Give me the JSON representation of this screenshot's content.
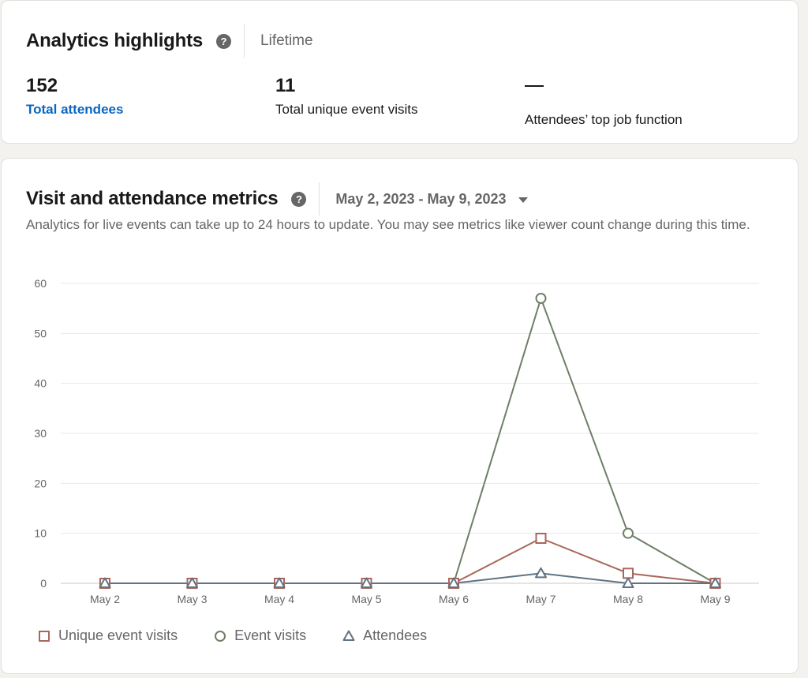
{
  "highlights": {
    "title": "Analytics highlights",
    "help_icon": "question-circle-icon",
    "period": "Lifetime",
    "stats": [
      {
        "value": "152",
        "label": "Total attendees"
      },
      {
        "value": "11",
        "label": "Total unique event visits"
      },
      {
        "value": "—",
        "label": "Attendees’ top job function"
      }
    ]
  },
  "metrics": {
    "title": "Visit and attendance metrics",
    "help_icon": "question-circle-icon",
    "date_range": "May 2, 2023 - May 9, 2023",
    "dropdown_icon": "caret-down-icon",
    "note": "Analytics for live events can take up to 24 hours to update. You may see metrics like viewer count change during this time."
  },
  "colors": {
    "unique_event_visits": "#a8675a",
    "event_visits": "#6d7f66",
    "attendees": "#5f7384",
    "link": "#0a66c2"
  },
  "chart_data": {
    "type": "line",
    "categories": [
      "May 2",
      "May 3",
      "May 4",
      "May 5",
      "May 6",
      "May 7",
      "May 8",
      "May 9"
    ],
    "ylim": [
      0,
      60
    ],
    "yticks": [
      0,
      10,
      20,
      30,
      40,
      50,
      60
    ],
    "grid": true,
    "legend_position": "bottom-left",
    "series": [
      {
        "name": "Unique event visits",
        "marker": "square",
        "values": [
          0,
          0,
          0,
          0,
          0,
          9,
          2,
          0
        ]
      },
      {
        "name": "Event visits",
        "marker": "circle",
        "values": [
          0,
          0,
          0,
          0,
          0,
          57,
          10,
          0
        ]
      },
      {
        "name": "Attendees",
        "marker": "triangle",
        "values": [
          0,
          0,
          0,
          0,
          0,
          2,
          0,
          0
        ]
      }
    ]
  }
}
